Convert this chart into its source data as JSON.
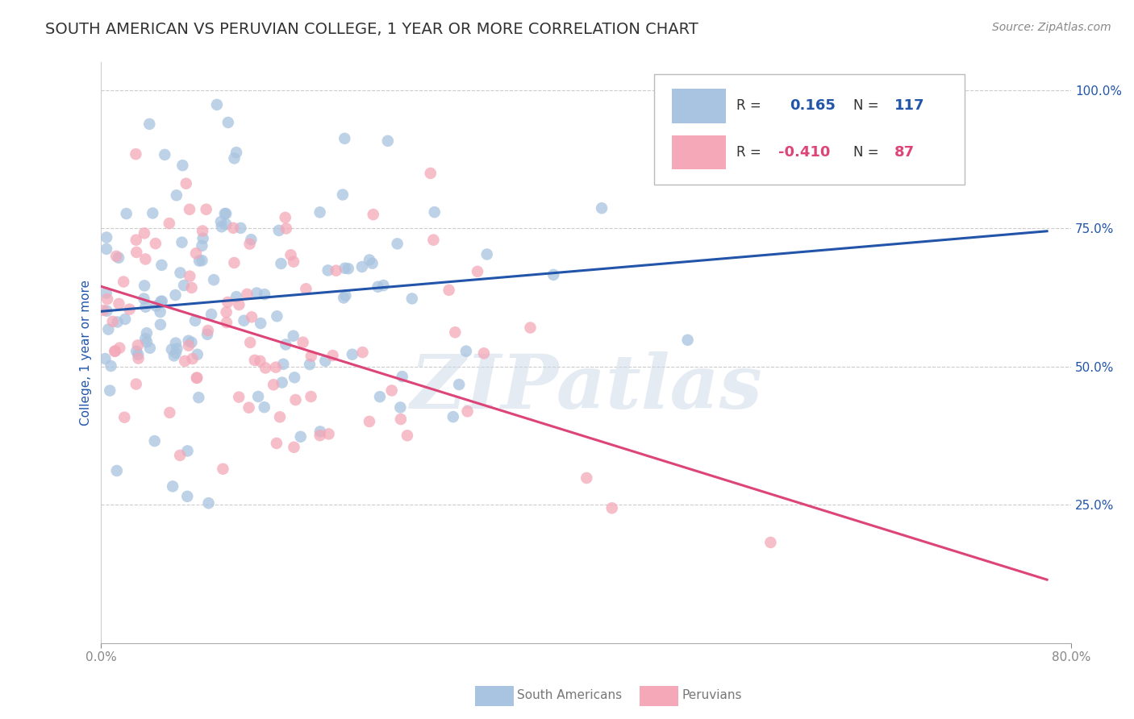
{
  "title": "SOUTH AMERICAN VS PERUVIAN COLLEGE, 1 YEAR OR MORE CORRELATION CHART",
  "source": "Source: ZipAtlas.com",
  "ylabel": "College, 1 year or more",
  "xlim": [
    0.0,
    0.8
  ],
  "ylim": [
    0.0,
    1.05
  ],
  "xtick_positions": [
    0.0,
    0.8
  ],
  "xtick_labels": [
    "0.0%",
    "80.0%"
  ],
  "ytick_positions": [
    0.25,
    0.5,
    0.75,
    1.0
  ],
  "ytick_labels": [
    "25.0%",
    "50.0%",
    "75.0%",
    "100.0%"
  ],
  "blue_R": 0.165,
  "blue_N": 117,
  "pink_R": -0.41,
  "pink_N": 87,
  "blue_color": "#a8c4e0",
  "pink_color": "#f4a8b8",
  "blue_line_color": "#2255aa",
  "pink_line_color": "#dd4477",
  "title_color": "#333333",
  "legend_R_blue": "0.165",
  "legend_R_pink": "-0.410",
  "legend_N_blue": "117",
  "legend_N_pink": "87",
  "watermark_text": "ZIPatlas",
  "legend_label_blue": "South Americans",
  "legend_label_pink": "Peruvians",
  "grid_color": "#cccccc",
  "background_color": "#ffffff",
  "title_fontsize": 14,
  "axis_label_fontsize": 11,
  "tick_fontsize": 11,
  "source_fontsize": 10,
  "seed": 7,
  "blue_line_x0": 0.0,
  "blue_line_y0": 0.6,
  "blue_line_x1": 0.78,
  "blue_line_y1": 0.745,
  "pink_line_x0": 0.0,
  "pink_line_y0": 0.645,
  "pink_line_x1": 0.78,
  "pink_line_y1": 0.115
}
